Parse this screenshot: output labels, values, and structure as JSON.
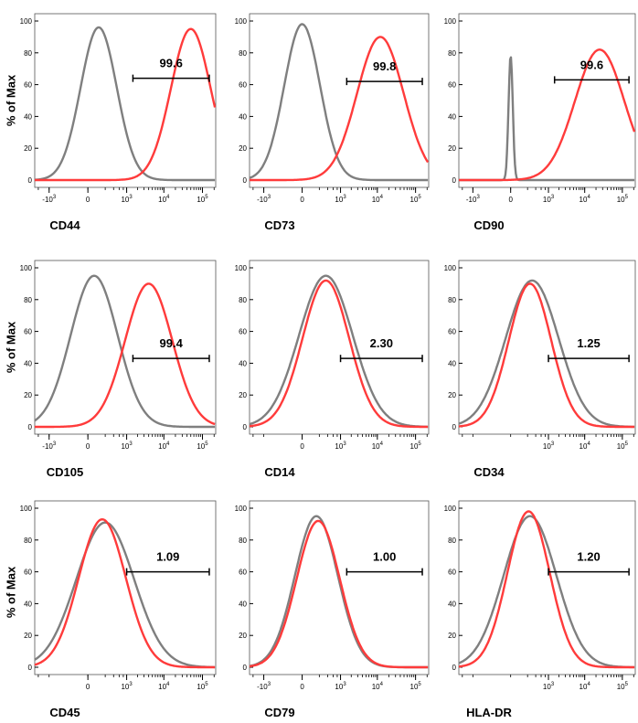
{
  "y_axis_label": "% of Max",
  "colors": {
    "isotype": "#7f7f7f",
    "marker": "#ff3b3b",
    "axis": "#000000",
    "text": "#000000"
  },
  "chart_data": [
    {
      "type": "area",
      "marker": "CD44",
      "value_label": "99.6",
      "ylim": [
        0,
        100
      ],
      "y_ticks": [
        "0",
        "20",
        "40",
        "60",
        "80",
        "100"
      ],
      "x_ticks": [
        {
          "base": "-10",
          "exp": "3"
        },
        {
          "base": "0",
          "exp": ""
        },
        {
          "base": "10",
          "exp": "3"
        },
        {
          "base": "10",
          "exp": "4"
        },
        {
          "base": "10",
          "exp": "5"
        }
      ],
      "gate": {
        "label": "99.6",
        "x_start": 1500,
        "x_end": 150000,
        "y": 64
      },
      "series": [
        {
          "role": "isotype",
          "peaks": [
            {
              "x": 100,
              "height": 96,
              "width": 0.1
            }
          ]
        },
        {
          "role": "marker",
          "peaks": [
            {
              "x": 50000,
              "height": 95,
              "width": 0.11
            }
          ]
        }
      ]
    },
    {
      "type": "area",
      "marker": "CD73",
      "value_label": "99.8",
      "ylim": [
        0,
        100
      ],
      "y_ticks": [
        "0",
        "20",
        "40",
        "60",
        "80",
        "100"
      ],
      "x_ticks": [
        {
          "base": "-10",
          "exp": "3"
        },
        {
          "base": "0",
          "exp": ""
        },
        {
          "base": "10",
          "exp": "3"
        },
        {
          "base": "10",
          "exp": "4"
        },
        {
          "base": "10",
          "exp": "5"
        }
      ],
      "gate": {
        "label": "99.8",
        "x_start": 1500,
        "x_end": 150000,
        "y": 62
      },
      "series": [
        {
          "role": "isotype",
          "peaks": [
            {
              "x": 0,
              "height": 98,
              "width": 0.1
            }
          ]
        },
        {
          "role": "marker",
          "peaks": [
            {
              "x": 12000,
              "height": 90,
              "width": 0.13
            }
          ]
        }
      ]
    },
    {
      "type": "area",
      "marker": "CD90",
      "value_label": "99.6",
      "ylim": [
        0,
        100
      ],
      "y_ticks": [
        "0",
        "20",
        "40",
        "60",
        "80",
        "100"
      ],
      "x_ticks": [
        {
          "base": "-10",
          "exp": "3"
        },
        {
          "base": "0",
          "exp": ""
        },
        {
          "base": "10",
          "exp": "3"
        },
        {
          "base": "10",
          "exp": "4"
        },
        {
          "base": "10",
          "exp": "5"
        }
      ],
      "gate": {
        "label": "99.6",
        "x_start": 1500,
        "x_end": 150000,
        "y": 63
      },
      "series": [
        {
          "role": "isotype",
          "peaks": [
            {
              "x": 0,
              "height": 78,
              "width": 0.012
            }
          ]
        },
        {
          "role": "marker",
          "peaks": [
            {
              "x": 25000,
              "height": 82,
              "width": 0.14
            }
          ]
        }
      ]
    },
    {
      "type": "area",
      "marker": "CD105",
      "value_label": "99.4",
      "ylim": [
        0,
        100
      ],
      "y_ticks": [
        "0",
        "20",
        "40",
        "60",
        "80",
        "100"
      ],
      "x_ticks": [
        {
          "base": "-10",
          "exp": "3"
        },
        {
          "base": "0",
          "exp": ""
        },
        {
          "base": "10",
          "exp": "3"
        },
        {
          "base": "10",
          "exp": "4"
        },
        {
          "base": "10",
          "exp": "5"
        }
      ],
      "gate": {
        "label": "99.4",
        "x_start": 1500,
        "x_end": 150000,
        "y": 43
      },
      "series": [
        {
          "role": "isotype",
          "peaks": [
            {
              "x": 50,
              "height": 95,
              "width": 0.13
            }
          ]
        },
        {
          "role": "marker",
          "peaks": [
            {
              "x": 4000,
              "height": 90,
              "width": 0.13
            }
          ]
        }
      ]
    },
    {
      "type": "area",
      "marker": "CD14",
      "value_label": "2.30",
      "ylim": [
        0,
        100
      ],
      "y_ticks": [
        "0",
        "20",
        "40",
        "60",
        "80",
        "100"
      ],
      "x_ticks": [
        {
          "base": "0",
          "exp": ""
        },
        {
          "base": "10",
          "exp": "3"
        },
        {
          "base": "10",
          "exp": "4"
        },
        {
          "base": "10",
          "exp": "5"
        }
      ],
      "gate": {
        "label": "2.30",
        "x_start": 1000,
        "x_end": 150000,
        "y": 43
      },
      "series": [
        {
          "role": "isotype",
          "peaks": [
            {
              "x": 350,
              "height": 95,
              "width": 0.15
            }
          ]
        },
        {
          "role": "marker",
          "peaks": [
            {
              "x": 350,
              "height": 92,
              "width": 0.13
            }
          ]
        }
      ]
    },
    {
      "type": "area",
      "marker": "CD34",
      "value_label": "1.25",
      "ylim": [
        0,
        100
      ],
      "y_ticks": [
        "0",
        "20",
        "40",
        "60",
        "80",
        "100"
      ],
      "x_ticks": [
        {
          "base": "10",
          "exp": "3"
        },
        {
          "base": "10",
          "exp": "4"
        },
        {
          "base": "10",
          "exp": "5"
        }
      ],
      "gate": {
        "label": "1.25",
        "x_start": 1000,
        "x_end": 150000,
        "y": 43
      },
      "series": [
        {
          "role": "isotype",
          "peaks": [
            {
              "x": 300,
              "height": 92,
              "width": 0.15
            }
          ]
        },
        {
          "role": "marker",
          "peaks": [
            {
              "x": 250,
              "height": 90,
              "width": 0.12
            }
          ]
        }
      ]
    },
    {
      "type": "area",
      "marker": "CD45",
      "value_label": "1.09",
      "ylim": [
        0,
        100
      ],
      "y_ticks": [
        "0",
        "20",
        "40",
        "60",
        "80",
        "100"
      ],
      "x_ticks": [
        {
          "base": "0",
          "exp": ""
        },
        {
          "base": "10",
          "exp": "3"
        },
        {
          "base": "10",
          "exp": "4"
        },
        {
          "base": "10",
          "exp": "5"
        }
      ],
      "gate": {
        "label": "1.09",
        "x_start": 1000,
        "x_end": 150000,
        "y": 60
      },
      "series": [
        {
          "role": "isotype",
          "peaks": [
            {
              "x": 200,
              "height": 91,
              "width": 0.16
            }
          ]
        },
        {
          "role": "marker",
          "peaks": [
            {
              "x": 150,
              "height": 93,
              "width": 0.13
            }
          ]
        }
      ]
    },
    {
      "type": "area",
      "marker": "CD79",
      "value_label": "1.00",
      "ylim": [
        0,
        100
      ],
      "y_ticks": [
        "0",
        "20",
        "40",
        "60",
        "80",
        "100"
      ],
      "x_ticks": [
        {
          "base": "-10",
          "exp": "3"
        },
        {
          "base": "0",
          "exp": ""
        },
        {
          "base": "10",
          "exp": "3"
        },
        {
          "base": "10",
          "exp": "4"
        },
        {
          "base": "10",
          "exp": "5"
        }
      ],
      "gate": {
        "label": "1.00",
        "x_start": 1500,
        "x_end": 150000,
        "y": 60
      },
      "series": [
        {
          "role": "isotype",
          "peaks": [
            {
              "x": 150,
              "height": 95,
              "width": 0.12
            }
          ]
        },
        {
          "role": "marker",
          "peaks": [
            {
              "x": 180,
              "height": 92,
              "width": 0.12
            }
          ]
        }
      ]
    },
    {
      "type": "area",
      "marker": "HLA-DR",
      "value_label": "1.20",
      "ylim": [
        0,
        100
      ],
      "y_ticks": [
        "0",
        "20",
        "40",
        "60",
        "80",
        "100"
      ],
      "x_ticks": [
        {
          "base": "10",
          "exp": "3"
        },
        {
          "base": "10",
          "exp": "4"
        },
        {
          "base": "10",
          "exp": "5"
        }
      ],
      "gate": {
        "label": "1.20",
        "x_start": 1000,
        "x_end": 150000,
        "y": 60
      },
      "series": [
        {
          "role": "isotype",
          "peaks": [
            {
              "x": 250,
              "height": 95,
              "width": 0.15
            }
          ]
        },
        {
          "role": "marker",
          "peaks": [
            {
              "x": 220,
              "height": 98,
              "width": 0.12
            }
          ]
        }
      ]
    }
  ]
}
